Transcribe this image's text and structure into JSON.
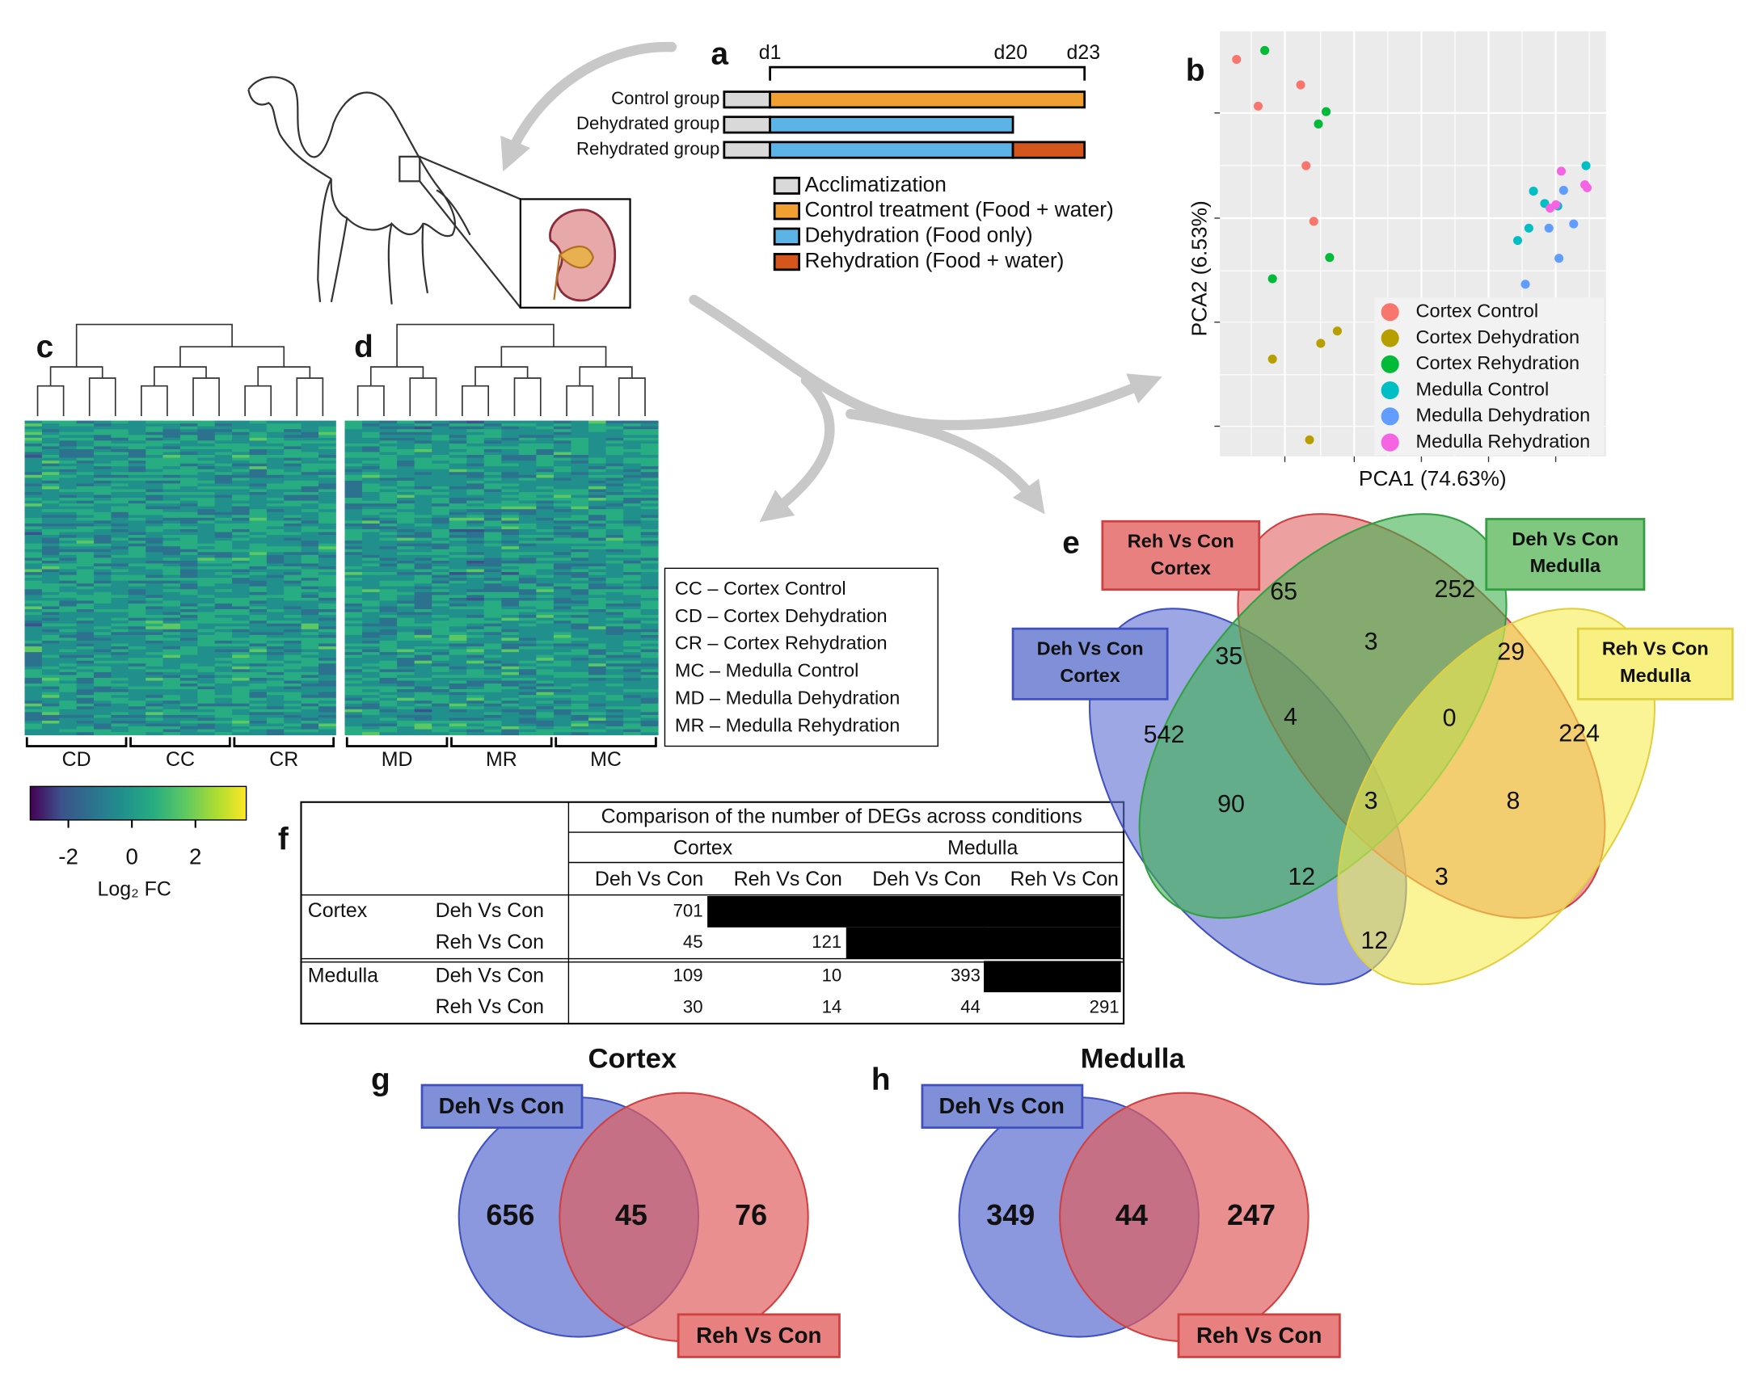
{
  "panel_labels": [
    "a",
    "b",
    "c",
    "d",
    "e",
    "f",
    "g",
    "h"
  ],
  "timeline": {
    "days": [
      "d1",
      "d20",
      "d23"
    ],
    "groups": [
      "Control group",
      "Dehydrated group",
      "Rehydrated group"
    ],
    "legend": [
      {
        "label": "Acclimatization",
        "color": "#d9d9d9"
      },
      {
        "label": "Control treatment (Food + water)",
        "color": "#f0a030"
      },
      {
        "label": "Dehydration (Food only)",
        "color": "#5bb4e5"
      },
      {
        "label": "Rehydration (Food + water)",
        "color": "#d4561c"
      }
    ]
  },
  "chart_data": {
    "type": "scatter",
    "xlabel": "PCA1 (74.63%)",
    "ylabel": "PCA2 (6.53%)",
    "xlim": [
      0,
      100
    ],
    "ylim": [
      0,
      100
    ],
    "legend": "bottom-right",
    "series": [
      {
        "name": "Cortex Control",
        "color": "#F8766D",
        "x": [
          4.3,
          9.9,
          20.9,
          22.3,
          24.3
        ],
        "values": [
          93.4,
          82.4,
          87.4,
          68.4,
          55.3
        ]
      },
      {
        "name": "Cortex Dehydration",
        "color": "#B79F00",
        "x": [
          13.6,
          26.1,
          30.4,
          23.2
        ],
        "values": [
          22.9,
          26.6,
          29.5,
          3.9
        ]
      },
      {
        "name": "Cortex Rehydration",
        "color": "#00BA38",
        "x": [
          11.6,
          27.5,
          25.5,
          28.4,
          13.6
        ],
        "values": [
          95.5,
          81.1,
          78.2,
          46.8,
          41.8
        ]
      },
      {
        "name": "Medulla Control",
        "color": "#00BFC4",
        "x": [
          94.8,
          81.2,
          84.1,
          87.5,
          80,
          77.1
        ],
        "values": [
          68.4,
          62.4,
          59.5,
          58.9,
          53.7,
          50.8
        ]
      },
      {
        "name": "Medulla Dehydration",
        "color": "#619CFF",
        "x": [
          89,
          85.2,
          91.6,
          87.8,
          79.1
        ],
        "values": [
          62.6,
          53.7,
          54.7,
          46.6,
          40.5
        ]
      },
      {
        "name": "Medulla Rehydration",
        "color": "#F564E3",
        "x": [
          88.4,
          94.5,
          95.1,
          85.5,
          87
        ],
        "values": [
          67.1,
          63.9,
          63.2,
          58.4,
          59.2
        ]
      }
    ]
  },
  "heatmaps": {
    "groups_c": [
      "CD",
      "CC",
      "CR"
    ],
    "groups_d": [
      "MD",
      "MR",
      "MC"
    ],
    "colorbar": {
      "lim": [
        -3.2,
        3.6
      ],
      "ticks": [
        -2,
        0,
        2
      ],
      "label": "Log₂ FC"
    },
    "key": [
      "CC – Cortex Control",
      "CD – Cortex Dehydration",
      "CR – Cortex Rehydration",
      "MC – Medulla Control",
      "MD – Medulla Dehydration",
      "MR – Medulla Rehydration"
    ]
  },
  "venn4": {
    "sets": [
      {
        "label": [
          "Reh Vs Con",
          "Cortex"
        ]
      },
      {
        "label": [
          "Deh Vs Con",
          "Medulla"
        ]
      },
      {
        "label": [
          "Deh Vs Con",
          "Cortex"
        ]
      },
      {
        "label": [
          "Reh Vs Con",
          "Medulla"
        ]
      }
    ],
    "regions": [
      65,
      252,
      35,
      3,
      29,
      542,
      4,
      0,
      224,
      90,
      3,
      8,
      12,
      3,
      12
    ]
  },
  "table": {
    "title": "Comparison of the number of DEGs across conditions",
    "groups": [
      "Cortex",
      "Medulla"
    ],
    "columns": [
      "Deh Vs Con",
      "Reh Vs Con",
      "Deh Vs Con",
      "Reh Vs Con"
    ],
    "row_groups": [
      {
        "name": "Cortex",
        "rows": [
          {
            "label": "Deh Vs Con",
            "values": [
              701
            ]
          },
          {
            "label": "Reh Vs Con",
            "values": [
              45,
              121
            ]
          }
        ]
      },
      {
        "name": "Medulla",
        "rows": [
          {
            "label": "Deh Vs Con",
            "values": [
              109,
              10,
              393
            ]
          },
          {
            "label": "Reh Vs Con",
            "values": [
              30,
              14,
              44,
              291
            ]
          }
        ]
      }
    ]
  },
  "venn2": [
    {
      "title": "Cortex",
      "sets": [
        "Deh Vs Con",
        "Reh Vs Con"
      ],
      "values": [
        656,
        45,
        76
      ]
    },
    {
      "title": "Medulla",
      "sets": [
        "Deh Vs Con",
        "Reh Vs Con"
      ],
      "values": [
        349,
        44,
        247
      ]
    }
  ]
}
